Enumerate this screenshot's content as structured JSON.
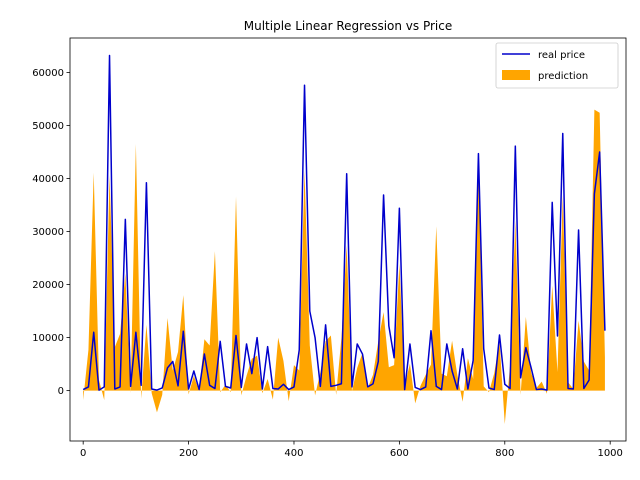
{
  "chart_data": {
    "type": "line",
    "title": "Multiple Linear Regression vs Price",
    "xlabel": "",
    "ylabel": "",
    "xlim": [
      -25,
      1030
    ],
    "ylim": [
      -9500,
      66500
    ],
    "xticks": [
      0,
      200,
      400,
      600,
      800,
      1000
    ],
    "yticks": [
      0,
      10000,
      20000,
      30000,
      40000,
      50000,
      60000
    ],
    "grid": false,
    "legend_position": "top-right",
    "colors": {
      "real": "#0000cc",
      "prediction": "#ffa500"
    },
    "x": [
      0,
      10,
      20,
      30,
      40,
      50,
      60,
      70,
      80,
      90,
      100,
      110,
      120,
      130,
      140,
      150,
      160,
      170,
      180,
      190,
      200,
      210,
      220,
      230,
      240,
      250,
      260,
      270,
      280,
      290,
      300,
      310,
      320,
      330,
      340,
      350,
      360,
      370,
      380,
      390,
      400,
      410,
      420,
      430,
      440,
      450,
      460,
      470,
      480,
      490,
      500,
      510,
      520,
      530,
      540,
      550,
      560,
      570,
      580,
      590,
      600,
      610,
      620,
      630,
      640,
      650,
      660,
      670,
      680,
      690,
      700,
      710,
      720,
      730,
      740,
      750,
      760,
      770,
      780,
      790,
      800,
      810,
      820,
      830,
      840,
      850,
      860,
      870,
      880,
      890,
      900,
      910,
      920,
      930,
      940,
      950,
      960,
      970,
      980,
      990
    ],
    "series": [
      {
        "name": "real price",
        "style": "line",
        "values": [
          200,
          700,
          11000,
          100,
          700,
          63200,
          300,
          700,
          32300,
          800,
          11000,
          1000,
          39200,
          300,
          100,
          500,
          4300,
          5500,
          900,
          11200,
          300,
          3700,
          200,
          6900,
          1000,
          400,
          9300,
          800,
          500,
          10400,
          600,
          8800,
          3200,
          10000,
          300,
          8300,
          400,
          300,
          1200,
          200,
          700,
          7700,
          57600,
          15000,
          10000,
          800,
          12400,
          800,
          1000,
          1300,
          40900,
          700,
          8800,
          6900,
          700,
          1300,
          5500,
          36900,
          12200,
          6200,
          34400,
          200,
          8800,
          600,
          200,
          700,
          11300,
          800,
          200,
          8800,
          3700,
          300,
          7900,
          300,
          5700,
          44700,
          7900,
          500,
          200,
          10500,
          1200,
          400,
          46100,
          2400,
          8100,
          4300,
          200,
          300,
          100,
          35500,
          10300,
          48500,
          400,
          300,
          30300,
          400,
          2000,
          37100,
          45000,
          11300
        ]
      },
      {
        "name": "prediction",
        "style": "area",
        "values": [
          -1800,
          7700,
          41100,
          2000,
          -1800,
          40700,
          8200,
          10700,
          22100,
          -500,
          46500,
          -1500,
          12400,
          -500,
          -4100,
          -800,
          13700,
          3800,
          7300,
          18000,
          -700,
          2800,
          -100,
          9700,
          8500,
          26300,
          -300,
          1100,
          -300,
          36600,
          -900,
          2800,
          6000,
          6600,
          -500,
          2200,
          -1700,
          10000,
          5600,
          -2000,
          4800,
          3800,
          41500,
          8500,
          -900,
          3400,
          9300,
          10400,
          -800,
          9900,
          27400,
          -100,
          4300,
          7100,
          500,
          3000,
          9300,
          14800,
          4400,
          4800,
          23900,
          900,
          5100,
          -2400,
          900,
          3000,
          4900,
          31000,
          3200,
          2700,
          9400,
          2900,
          -2100,
          6100,
          2200,
          43400,
          800,
          -300,
          3300,
          9300,
          -6300,
          4700,
          32100,
          -800,
          13900,
          3400,
          500,
          1700,
          -600,
          19800,
          3500,
          36800,
          1600,
          300,
          13200,
          5500,
          3800,
          53000,
          52400,
          6300
        ]
      }
    ]
  }
}
